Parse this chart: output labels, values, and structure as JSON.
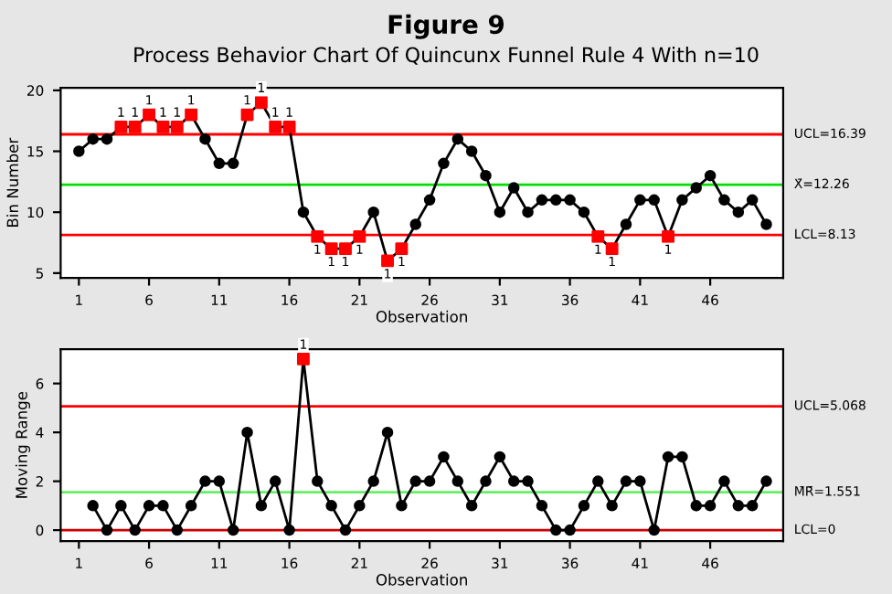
{
  "chart_data": [
    {
      "type": "line",
      "title": "Figure 9",
      "subtitle": "Process Behavior Chart Of Quincunx Funnel Rule 4 With n=10",
      "xlabel": "Observation",
      "ylabel": "Bin Number",
      "x": [
        1,
        2,
        3,
        4,
        5,
        6,
        7,
        8,
        9,
        10,
        11,
        12,
        13,
        14,
        15,
        16,
        17,
        18,
        19,
        20,
        21,
        22,
        23,
        24,
        25,
        26,
        27,
        28,
        29,
        30,
        31,
        32,
        33,
        34,
        35,
        36,
        37,
        38,
        39,
        40,
        41,
        42,
        43,
        44,
        45,
        46,
        47,
        48,
        49,
        50
      ],
      "series": [
        {
          "type": "line",
          "color": "#000000",
          "marker": "circle",
          "values": [
            15,
            16,
            16,
            17,
            17,
            18,
            17,
            17,
            18,
            16,
            14,
            14,
            18,
            19,
            17,
            17,
            10,
            8,
            7,
            7,
            8,
            10,
            6,
            7,
            9,
            11,
            14,
            16,
            15,
            13,
            10,
            12,
            10,
            11,
            11,
            11,
            10,
            8,
            7,
            9,
            11,
            11,
            8,
            11,
            12,
            13,
            11,
            10,
            11,
            9
          ]
        },
        {
          "type": "scatter",
          "color": "#ff0000",
          "marker": "square",
          "x": [
            4,
            5,
            6,
            7,
            8,
            9,
            13,
            14,
            15,
            16,
            18,
            19,
            20,
            21,
            23,
            24,
            38,
            39,
            43
          ],
          "values": [
            17,
            17,
            18,
            17,
            17,
            18,
            18,
            19,
            17,
            17,
            8,
            7,
            7,
            8,
            6,
            7,
            8,
            7,
            8
          ]
        }
      ],
      "annotations": [
        {
          "text": "1",
          "x": 4,
          "y": 17
        },
        {
          "text": "1",
          "x": 5,
          "y": 17
        },
        {
          "text": "1",
          "x": 6,
          "y": 18
        },
        {
          "text": "1",
          "x": 7,
          "y": 17
        },
        {
          "text": "1",
          "x": 8,
          "y": 17
        },
        {
          "text": "1",
          "x": 9,
          "y": 18
        },
        {
          "text": "1",
          "x": 13,
          "y": 18
        },
        {
          "text": "1",
          "x": 14,
          "y": 19
        },
        {
          "text": "1",
          "x": 15,
          "y": 17
        },
        {
          "text": "1",
          "x": 16,
          "y": 17
        },
        {
          "text": "1",
          "x": 18,
          "y": 8
        },
        {
          "text": "1",
          "x": 19,
          "y": 7
        },
        {
          "text": "1",
          "x": 20,
          "y": 7
        },
        {
          "text": "1",
          "x": 21,
          "y": 8
        },
        {
          "text": "1",
          "x": 23,
          "y": 6
        },
        {
          "text": "1",
          "x": 24,
          "y": 7
        },
        {
          "text": "1",
          "x": 38,
          "y": 8
        },
        {
          "text": "1",
          "x": 39,
          "y": 7
        },
        {
          "text": "1",
          "x": 43,
          "y": 8
        }
      ],
      "xlim": [
        -0.3,
        51.2
      ],
      "xticks": [
        1,
        6,
        11,
        16,
        21,
        26,
        31,
        36,
        41,
        46
      ],
      "ylim": [
        4.6,
        20.2
      ],
      "yticks": [
        5,
        10,
        15,
        20
      ],
      "grid": false,
      "legend": false,
      "ref_lines": [
        {
          "axis": "y",
          "value": 16.39,
          "label": "UCL=16.39",
          "color": "#ff0000"
        },
        {
          "axis": "y",
          "value": 12.26,
          "label": "X̄=12.26",
          "color": "#00dd00"
        },
        {
          "axis": "y",
          "value": 8.13,
          "label": "LCL=8.13",
          "color": "#ff0000"
        }
      ]
    },
    {
      "type": "line",
      "xlabel": "Observation",
      "ylabel": "Moving Range",
      "x": [
        2,
        3,
        4,
        5,
        6,
        7,
        8,
        9,
        10,
        11,
        12,
        13,
        14,
        15,
        16,
        17,
        18,
        19,
        20,
        21,
        22,
        23,
        24,
        25,
        26,
        27,
        28,
        29,
        30,
        31,
        32,
        33,
        34,
        35,
        36,
        37,
        38,
        39,
        40,
        41,
        42,
        43,
        44,
        45,
        46,
        47,
        48,
        49,
        50
      ],
      "series": [
        {
          "type": "line",
          "color": "#000000",
          "marker": "circle",
          "values": [
            1,
            0,
            1,
            0,
            1,
            1,
            0,
            1,
            2,
            2,
            0,
            4,
            1,
            2,
            0,
            7,
            2,
            1,
            0,
            1,
            2,
            4,
            1,
            2,
            2,
            3,
            2,
            1,
            2,
            3,
            2,
            2,
            1,
            0,
            0,
            1,
            2,
            1,
            2,
            2,
            0,
            3,
            3,
            1,
            1,
            2,
            1,
            1,
            2
          ]
        },
        {
          "type": "scatter",
          "color": "#ff0000",
          "marker": "square",
          "x": [
            17
          ],
          "values": [
            7
          ]
        }
      ],
      "annotations": [
        {
          "text": "1",
          "x": 17,
          "y": 7
        }
      ],
      "xlim": [
        -0.3,
        51.2
      ],
      "xticks": [
        1,
        6,
        11,
        16,
        21,
        26,
        31,
        36,
        41,
        46
      ],
      "ylim": [
        -0.45,
        7.4
      ],
      "yticks": [
        0,
        2,
        4,
        6
      ],
      "grid": false,
      "legend": false,
      "ref_lines": [
        {
          "axis": "y",
          "value": 5.068,
          "label": "UCL=5.068",
          "color": "#ff0000"
        },
        {
          "axis": "y",
          "value": 1.551,
          "label": "M̄R̄=1.551",
          "color": "#66ee66"
        },
        {
          "axis": "y",
          "value": 0,
          "label": "LCL=0",
          "color": "#cc0000"
        }
      ]
    }
  ]
}
